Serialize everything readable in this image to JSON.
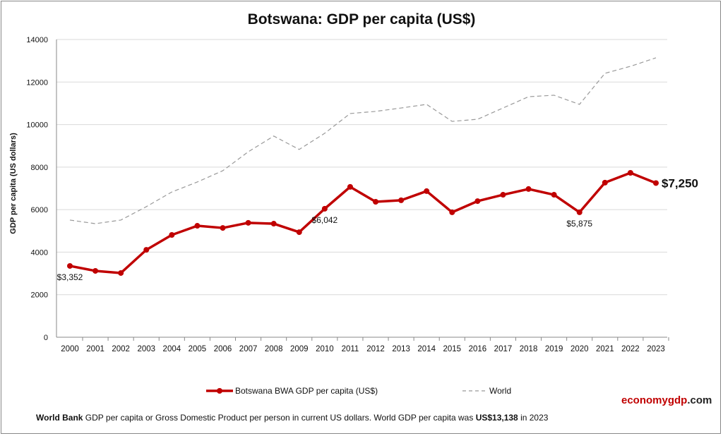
{
  "chart_data": {
    "type": "line",
    "title": "Botswana: GDP per capita (US$)",
    "xlabel": "",
    "ylabel": "GDP per capita (US dollars)",
    "ylim": [
      0,
      14000
    ],
    "yticks": [
      "0",
      "2000",
      "4000",
      "6000",
      "8000",
      "10000",
      "12000",
      "14000"
    ],
    "grid": true,
    "legend_position": "bottom",
    "x": [
      "2000",
      "2001",
      "2002",
      "2003",
      "2004",
      "2005",
      "2006",
      "2007",
      "2008",
      "2009",
      "2010",
      "2011",
      "2012",
      "2013",
      "2014",
      "2015",
      "2016",
      "2017",
      "2018",
      "2019",
      "2020",
      "2021",
      "2022",
      "2023"
    ],
    "series": [
      {
        "name": "Botswana BWA GDP per capita (US$)",
        "color": "#c00000",
        "values": [
          3352,
          3120,
          3020,
          4110,
          4810,
          5240,
          5140,
          5380,
          5340,
          4940,
          6042,
          7070,
          6370,
          6440,
          6870,
          5875,
          6400,
          6700,
          6970,
          6700,
          5875,
          7270,
          7730,
          7250
        ]
      },
      {
        "name": "World",
        "color": "#999999",
        "values": [
          5510,
          5340,
          5510,
          6140,
          6830,
          7300,
          7830,
          8720,
          9460,
          8830,
          9590,
          10520,
          10620,
          10780,
          10950,
          10150,
          10250,
          10780,
          11310,
          11380,
          10950,
          12410,
          12740,
          13138
        ]
      }
    ],
    "annotations": [
      {
        "x": "2000",
        "text": "$3,352"
      },
      {
        "x": "2010",
        "text": "$6,042"
      },
      {
        "x": "2020",
        "text": "$5,875"
      },
      {
        "x": "2023",
        "text": "$7,250"
      }
    ]
  },
  "brand": {
    "part1": "economy",
    "part2": "gdp",
    "part3": ".com",
    "color1": "#c00000"
  },
  "footer": {
    "source": "World Bank",
    "text": " GDP per capita or Gross Domestic Product per person  in current US dollars.   World GDP per capita was ",
    "world_value": "US$13,138",
    "suffix": "  in 2023"
  }
}
